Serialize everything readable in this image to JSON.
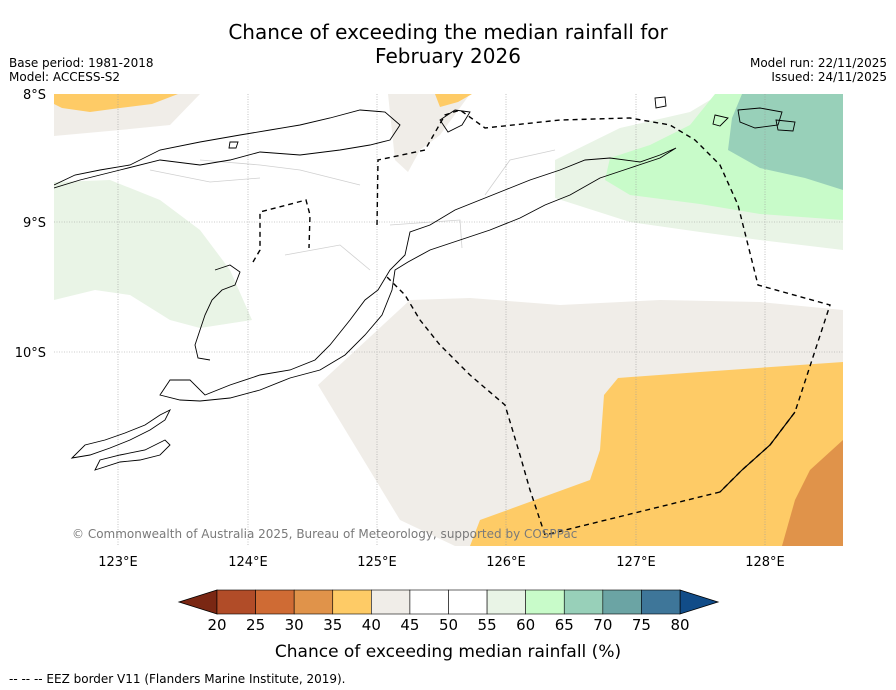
{
  "title_line1": "Chance of exceeding the median rainfall for",
  "title_line2": "February 2026",
  "base_period": "Base period: 1981-2018",
  "model": "Model: ACCESS-S2",
  "model_run": "Model run: 22/11/2025",
  "issued": "Issued: 24/11/2025",
  "lat_labels": [
    "8°S",
    "9°S",
    "10°S"
  ],
  "lon_labels": [
    "123°E",
    "124°E",
    "125°E",
    "126°E",
    "127°E",
    "128°E"
  ],
  "copyright": "© Commonwealth of Australia 2025, Bureau of Meteorology, supported by COSPPac",
  "colorbar": {
    "ticks": [
      "20",
      "25",
      "30",
      "35",
      "40",
      "45",
      "50",
      "55",
      "60",
      "65",
      "70",
      "75",
      "80"
    ],
    "colors": [
      "#7a2713",
      "#b14c28",
      "#cf6b34",
      "#e0934a",
      "#fecb66",
      "#f0ede8",
      "#ffffff",
      "#ffffff",
      "#e9f4e6",
      "#c8fbc9",
      "#98d0b9",
      "#6ba4a4",
      "#3e7699",
      "#114c88"
    ],
    "label": "Chance of exceeding median rainfall (%)"
  },
  "footer": "--  --  -- EEZ border V11 (Flanders Marine Institute, 2019).",
  "icons": [
    "colorbar-arrow-low-icon",
    "colorbar-arrow-high-icon"
  ]
}
